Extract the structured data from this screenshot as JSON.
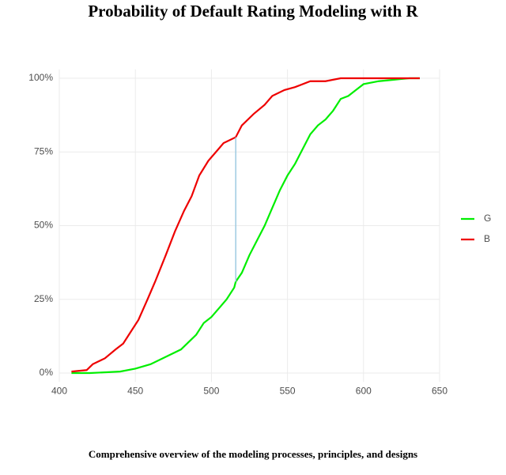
{
  "chart_data": {
    "type": "line",
    "title": "Probability of Default Rating Modeling with R",
    "caption": "Comprehensive overview of the modeling processes, principles, and designs",
    "xlim": [
      400,
      650
    ],
    "xticks": [
      400,
      450,
      500,
      550,
      600,
      650
    ],
    "ylim": [
      -3,
      103
    ],
    "yticks": [
      {
        "value": 0,
        "label": "0%"
      },
      {
        "value": 25,
        "label": "25%"
      },
      {
        "value": 50,
        "label": "50%"
      },
      {
        "value": 75,
        "label": "75%"
      },
      {
        "value": 100,
        "label": "100%"
      }
    ],
    "grid": true,
    "legend": "right",
    "series": [
      {
        "name": "G",
        "color": "#00ee00",
        "x": [
          408,
          420,
          440,
          450,
          460,
          470,
          480,
          490,
          495,
          500,
          505,
          510,
          515,
          516,
          520,
          525,
          530,
          535,
          540,
          545,
          550,
          555,
          560,
          565,
          570,
          575,
          580,
          585,
          590,
          595,
          600,
          610,
          620,
          630,
          637
        ],
        "values": [
          0,
          0,
          0.5,
          1.5,
          3,
          5.5,
          8,
          13,
          17,
          19,
          22,
          25,
          29,
          31,
          34,
          40,
          45,
          50,
          56,
          62,
          67,
          71,
          76,
          81,
          84,
          86,
          89,
          93,
          94,
          96,
          98,
          99,
          99.5,
          100,
          100
        ]
      },
      {
        "name": "B",
        "color": "#ee0000",
        "x": [
          408,
          418,
          422,
          430,
          437,
          442,
          447,
          452,
          458,
          463,
          470,
          476,
          482,
          487,
          492,
          498,
          503,
          508,
          516,
          520,
          528,
          535,
          540,
          548,
          555,
          565,
          575,
          585,
          620,
          637
        ],
        "values": [
          0.5,
          1,
          3,
          5,
          8,
          10,
          14,
          18,
          25,
          31,
          40,
          48,
          55,
          60,
          67,
          72,
          75,
          78,
          80,
          84,
          88,
          91,
          94,
          96,
          97,
          99,
          99,
          100,
          100,
          100
        ]
      }
    ],
    "ks_segment": {
      "x": 516,
      "y_from": 31,
      "y_to": 80,
      "color": "#9ecae1"
    }
  }
}
